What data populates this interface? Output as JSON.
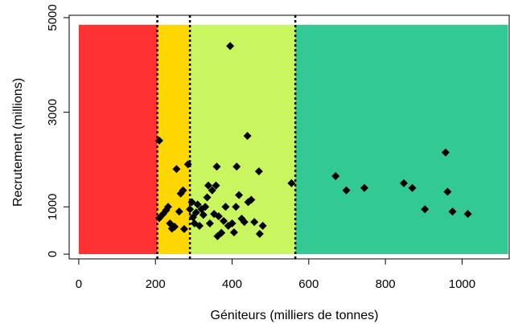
{
  "chart_data": {
    "type": "scatter",
    "title": "",
    "xlabel": "Géniteurs (milliers de tonnes)",
    "ylabel": "Recrutement (millions)",
    "xlim": [
      -25,
      1125
    ],
    "ylim": [
      -100,
      5050
    ],
    "x_ticks": [
      0,
      200,
      400,
      600,
      800,
      1000
    ],
    "x_tick_labels": [
      "0",
      "200",
      "400",
      "600",
      "800",
      "1000"
    ],
    "y_ticks": [
      0,
      1000,
      3000,
      5000
    ],
    "y_tick_labels": [
      "0",
      "1000",
      "3000",
      "5000"
    ],
    "grid": false,
    "zones": [
      {
        "x0": 0,
        "x1": 205,
        "color": "#fe3232"
      },
      {
        "x0": 205,
        "x1": 290,
        "color": "#ffd700"
      },
      {
        "x0": 290,
        "x1": 565,
        "color": "#c9f55e"
      },
      {
        "x0": 565,
        "x1": 1120,
        "color": "#33c995"
      }
    ],
    "zone_ylim": [
      0,
      4850
    ],
    "reference_lines": [
      205,
      290,
      565
    ],
    "marker": "diamond",
    "marker_color": "#000000",
    "points": [
      {
        "x": 210,
        "y": 2400
      },
      {
        "x": 210,
        "y": 760
      },
      {
        "x": 220,
        "y": 850
      },
      {
        "x": 228,
        "y": 930
      },
      {
        "x": 233,
        "y": 1000
      },
      {
        "x": 238,
        "y": 650
      },
      {
        "x": 243,
        "y": 540
      },
      {
        "x": 250,
        "y": 580
      },
      {
        "x": 255,
        "y": 1800
      },
      {
        "x": 262,
        "y": 900
      },
      {
        "x": 266,
        "y": 1280
      },
      {
        "x": 272,
        "y": 1350
      },
      {
        "x": 275,
        "y": 530
      },
      {
        "x": 285,
        "y": 1900
      },
      {
        "x": 290,
        "y": 950
      },
      {
        "x": 295,
        "y": 1100
      },
      {
        "x": 298,
        "y": 780
      },
      {
        "x": 302,
        "y": 650
      },
      {
        "x": 306,
        "y": 880
      },
      {
        "x": 310,
        "y": 1050
      },
      {
        "x": 315,
        "y": 600
      },
      {
        "x": 320,
        "y": 950
      },
      {
        "x": 325,
        "y": 830
      },
      {
        "x": 330,
        "y": 1000
      },
      {
        "x": 335,
        "y": 1200
      },
      {
        "x": 338,
        "y": 1450
      },
      {
        "x": 342,
        "y": 650
      },
      {
        "x": 348,
        "y": 1350
      },
      {
        "x": 353,
        "y": 850
      },
      {
        "x": 358,
        "y": 1450
      },
      {
        "x": 360,
        "y": 1850
      },
      {
        "x": 362,
        "y": 380
      },
      {
        "x": 365,
        "y": 800
      },
      {
        "x": 372,
        "y": 450
      },
      {
        "x": 378,
        "y": 700
      },
      {
        "x": 383,
        "y": 1000
      },
      {
        "x": 390,
        "y": 600
      },
      {
        "x": 395,
        "y": 4400
      },
      {
        "x": 400,
        "y": 650
      },
      {
        "x": 405,
        "y": 460
      },
      {
        "x": 410,
        "y": 1000
      },
      {
        "x": 412,
        "y": 1850
      },
      {
        "x": 418,
        "y": 1250
      },
      {
        "x": 425,
        "y": 750
      },
      {
        "x": 432,
        "y": 680
      },
      {
        "x": 440,
        "y": 2500
      },
      {
        "x": 442,
        "y": 1100
      },
      {
        "x": 450,
        "y": 1150
      },
      {
        "x": 458,
        "y": 680
      },
      {
        "x": 470,
        "y": 1750
      },
      {
        "x": 472,
        "y": 430
      },
      {
        "x": 480,
        "y": 600
      },
      {
        "x": 555,
        "y": 1500
      },
      {
        "x": 670,
        "y": 1650
      },
      {
        "x": 698,
        "y": 1350
      },
      {
        "x": 745,
        "y": 1400
      },
      {
        "x": 848,
        "y": 1500
      },
      {
        "x": 870,
        "y": 1400
      },
      {
        "x": 903,
        "y": 950
      },
      {
        "x": 957,
        "y": 2150
      },
      {
        "x": 962,
        "y": 1320
      },
      {
        "x": 975,
        "y": 900
      },
      {
        "x": 1015,
        "y": 850
      }
    ]
  }
}
